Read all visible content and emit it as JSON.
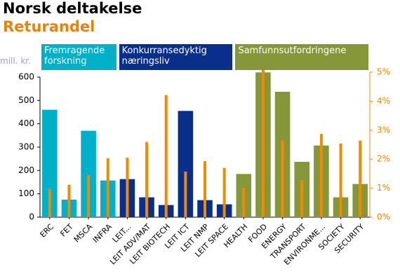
{
  "chart_data": {
    "type": "bar",
    "title": "Norsk deltakelse",
    "subtitle": "Returandel",
    "y_label": "mill. kr.",
    "categories": [
      "ERC",
      "FET",
      "MSCA",
      "INFRA",
      "LEIT...",
      "LEIT ADV/MAT",
      "LEIT BIOTECH",
      "LEIT ICT",
      "LEIT NMP",
      "LEIT SPACE",
      "HEALTH",
      "FOOD",
      "ENERGY",
      "TRANSPORT",
      "ENVIRONME...",
      "SOCIETY",
      "SECURITY"
    ],
    "series": [
      {
        "name": "Fremragende forskning",
        "color": "#00b0c8",
        "values": [
          460,
          75,
          370,
          157,
          null,
          null,
          null,
          null,
          null,
          null,
          null,
          null,
          null,
          null,
          null,
          null,
          null
        ]
      },
      {
        "name": "Konkurransedyktig næringsliv",
        "color": "#0a2f8a",
        "values": [
          null,
          null,
          null,
          null,
          163,
          85,
          52,
          455,
          73,
          55,
          null,
          null,
          null,
          null,
          null,
          null,
          null
        ]
      },
      {
        "name": "Samfunnsutfordringene",
        "color": "#86973a",
        "values": [
          null,
          null,
          null,
          null,
          null,
          null,
          null,
          null,
          null,
          null,
          185,
          620,
          537,
          237,
          307,
          85,
          142
        ]
      },
      {
        "color": "#f08a00",
        "axis": "y2",
        "values": [
          0.97,
          1.12,
          1.45,
          2.03,
          2.05,
          2.59,
          4.21,
          1.57,
          1.93,
          1.7,
          1.02,
          5.25,
          2.64,
          1.27,
          2.87,
          2.54,
          2.64
        ]
      }
    ],
    "ylim": [
      0,
      600
    ],
    "yticks": [
      0,
      100,
      200,
      300,
      400,
      500,
      600
    ],
    "y2lim": [
      0,
      5
    ],
    "y2ticks": [
      {
        "value": 0,
        "label": "0%"
      },
      {
        "value": 1,
        "label": "1%"
      },
      {
        "value": 2,
        "label": "2%"
      },
      {
        "value": 3,
        "label": "3%"
      },
      {
        "value": 4,
        "label": "4%"
      },
      {
        "value": 5,
        "label": "5%"
      }
    ]
  }
}
